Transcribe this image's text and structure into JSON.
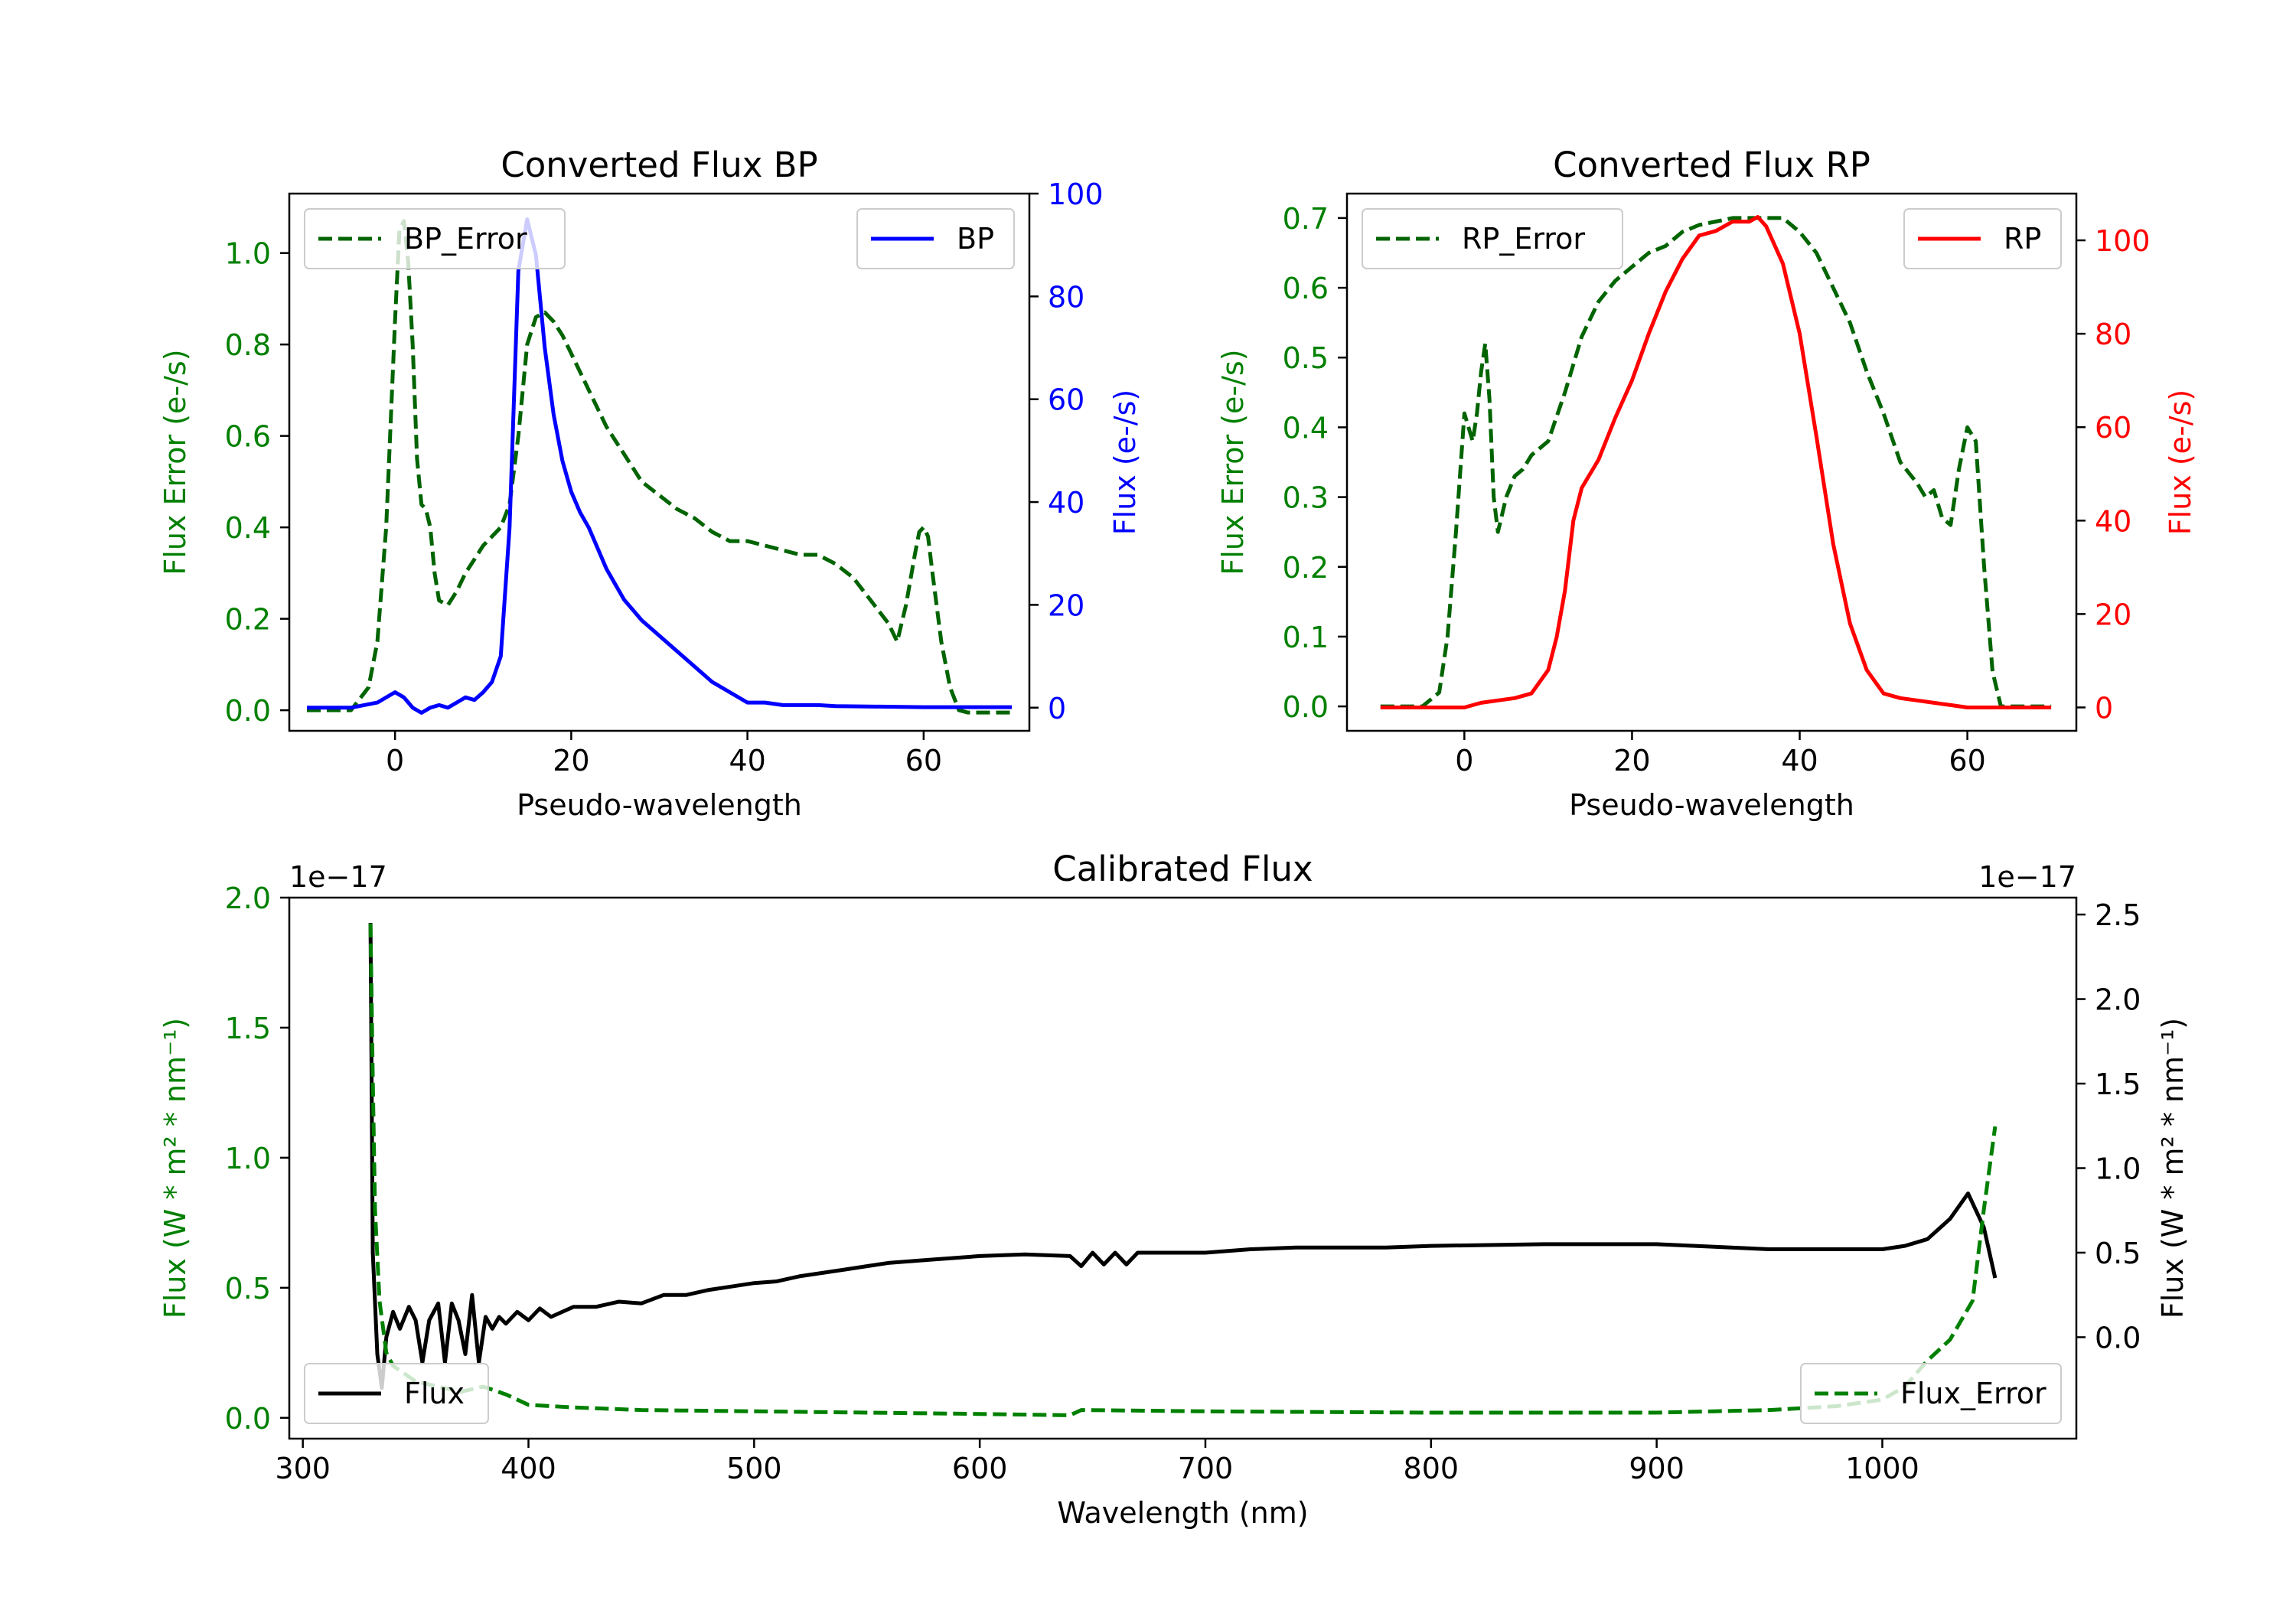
{
  "colors": {
    "green": "#008000",
    "darkgreen": "#006400",
    "blue": "#0000ff",
    "red": "#ff0000",
    "black": "#000000"
  },
  "chart_data": [
    {
      "id": "bp",
      "type": "line",
      "title": "Converted Flux BP",
      "xlabel": "Pseudo-wavelength",
      "ylabel_left": "Flux Error (e-/s)",
      "ylabel_right": "Flux (e-/s)",
      "xlim": [
        -12,
        72
      ],
      "ylim_left": [
        -0.045,
        1.13
      ],
      "ylim_right": [
        -4.5,
        100
      ],
      "xticks": [
        0,
        20,
        40,
        60
      ],
      "yticks_left": [
        0.0,
        0.2,
        0.4,
        0.6,
        0.8,
        1.0
      ],
      "yticks_right": [
        0,
        20,
        40,
        60,
        80,
        100
      ],
      "legend_left": "BP_Error",
      "legend_right": "BP",
      "series": [
        {
          "name": "BP_Error",
          "axis": "left",
          "style": "dashed",
          "color": "#006400",
          "x": [
            -10,
            -5,
            -3,
            -2,
            -1,
            0,
            0.5,
            1,
            1.5,
            2,
            2.5,
            3,
            3.5,
            4,
            4.5,
            5,
            6,
            7,
            8,
            9,
            10,
            11,
            12,
            13,
            14,
            15,
            16,
            17,
            18,
            19,
            20,
            22,
            24,
            26,
            28,
            30,
            32,
            34,
            36,
            38,
            40,
            42,
            44,
            46,
            48,
            50,
            52,
            54,
            56,
            57,
            58,
            59,
            59.5,
            60,
            60.5,
            61,
            62,
            63,
            64,
            65,
            70
          ],
          "values": [
            0.0,
            0.0,
            0.05,
            0.15,
            0.4,
            0.85,
            1.05,
            1.07,
            0.98,
            0.8,
            0.55,
            0.45,
            0.44,
            0.4,
            0.3,
            0.24,
            0.23,
            0.26,
            0.3,
            0.33,
            0.36,
            0.38,
            0.4,
            0.45,
            0.6,
            0.8,
            0.86,
            0.87,
            0.85,
            0.82,
            0.78,
            0.7,
            0.62,
            0.56,
            0.5,
            0.47,
            0.44,
            0.42,
            0.39,
            0.37,
            0.37,
            0.36,
            0.35,
            0.34,
            0.34,
            0.32,
            0.29,
            0.24,
            0.19,
            0.15,
            0.23,
            0.34,
            0.39,
            0.4,
            0.38,
            0.3,
            0.15,
            0.05,
            0.0,
            -0.005,
            -0.005
          ]
        },
        {
          "name": "BP",
          "axis": "right",
          "style": "solid",
          "color": "#0000ff",
          "x": [
            -10,
            -5,
            -2,
            0,
            1,
            2,
            3,
            4,
            5,
            6,
            7,
            8,
            9,
            10,
            11,
            12,
            13,
            14,
            15,
            16,
            17,
            18,
            19,
            20,
            21,
            22,
            23,
            24,
            25,
            26,
            27,
            28,
            30,
            32,
            34,
            36,
            38,
            40,
            42,
            44,
            46,
            48,
            50,
            55,
            60,
            65,
            70
          ],
          "values": [
            0,
            0,
            1,
            3,
            2,
            0,
            -1,
            0,
            0.5,
            0,
            1,
            2,
            1.5,
            3,
            5,
            10,
            35,
            85,
            95,
            88,
            70,
            57,
            48,
            42,
            38,
            35,
            31,
            27,
            24,
            21,
            19,
            17,
            14,
            11,
            8,
            5,
            3,
            1,
            1,
            0.5,
            0.5,
            0.5,
            0.3,
            0.2,
            0.1,
            0.1,
            0.1
          ]
        }
      ]
    },
    {
      "id": "rp",
      "type": "line",
      "title": "Converted Flux RP",
      "xlabel": "Pseudo-wavelength",
      "ylabel_left": "Flux Error (e-/s)",
      "ylabel_right": "Flux (e-/s)",
      "xlim": [
        -14,
        73
      ],
      "ylim_left": [
        -0.035,
        0.735
      ],
      "ylim_right": [
        -5,
        110
      ],
      "xticks": [
        0,
        20,
        40,
        60
      ],
      "yticks_left": [
        0.0,
        0.1,
        0.2,
        0.3,
        0.4,
        0.5,
        0.6,
        0.7
      ],
      "yticks_right": [
        0,
        20,
        40,
        60,
        80,
        100
      ],
      "legend_left": "RP_Error",
      "legend_right": "RP",
      "series": [
        {
          "name": "RP_Error",
          "axis": "left",
          "style": "dashed",
          "color": "#006400",
          "x": [
            -10,
            -5,
            -3,
            -2,
            -1,
            0,
            0.5,
            1,
            1.5,
            2,
            2.5,
            3,
            3.5,
            4,
            5,
            6,
            7,
            8,
            9,
            10,
            12,
            14,
            16,
            18,
            20,
            22,
            24,
            26,
            28,
            30,
            32,
            34,
            36,
            38,
            40,
            42,
            44,
            46,
            48,
            50,
            52,
            54,
            55,
            56,
            57,
            58,
            59,
            60,
            61,
            62,
            63,
            64,
            70
          ],
          "values": [
            0.0,
            0.0,
            0.02,
            0.1,
            0.25,
            0.42,
            0.4,
            0.38,
            0.42,
            0.48,
            0.52,
            0.44,
            0.3,
            0.25,
            0.3,
            0.33,
            0.34,
            0.36,
            0.37,
            0.38,
            0.45,
            0.53,
            0.58,
            0.61,
            0.63,
            0.65,
            0.66,
            0.68,
            0.69,
            0.695,
            0.7,
            0.7,
            0.7,
            0.7,
            0.68,
            0.65,
            0.6,
            0.55,
            0.48,
            0.42,
            0.35,
            0.32,
            0.3,
            0.31,
            0.27,
            0.26,
            0.34,
            0.4,
            0.38,
            0.2,
            0.05,
            0.0,
            0.0
          ]
        },
        {
          "name": "RP",
          "axis": "right",
          "style": "solid",
          "color": "#ff0000",
          "x": [
            -10,
            -5,
            0,
            2,
            4,
            6,
            8,
            10,
            11,
            12,
            13,
            14,
            16,
            18,
            20,
            22,
            24,
            26,
            28,
            30,
            32,
            34,
            35,
            36,
            38,
            40,
            42,
            44,
            46,
            48,
            50,
            52,
            54,
            56,
            58,
            60,
            65,
            70
          ],
          "values": [
            0,
            0,
            0,
            1,
            1.5,
            2,
            3,
            8,
            15,
            25,
            40,
            47,
            53,
            62,
            70,
            80,
            89,
            96,
            101,
            102,
            104,
            104,
            105,
            103,
            95,
            80,
            58,
            35,
            18,
            8,
            3,
            2,
            1.5,
            1,
            0.5,
            0,
            0,
            0
          ]
        }
      ]
    },
    {
      "id": "calibrated",
      "type": "line",
      "title": "Calibrated Flux",
      "xlabel": "Wavelength (nm)",
      "ylabel_left": "Flux (W * m² * nm⁻¹)",
      "ylabel_right": "Flux (W * m² * nm⁻¹)",
      "offset_left": "1e−17",
      "offset_right": "1e−17",
      "xlim": [
        294,
        1086
      ],
      "ylim_left": [
        -0.08,
        2.0
      ],
      "ylim_right": [
        -0.6,
        2.6
      ],
      "xticks": [
        300,
        400,
        500,
        600,
        700,
        800,
        900,
        1000
      ],
      "yticks_left": [
        0.0,
        0.5,
        1.0,
        1.5,
        2.0
      ],
      "yticks_right": [
        0.0,
        0.5,
        1.0,
        1.5,
        2.0,
        2.5
      ],
      "legend_left": "Flux",
      "legend_right": "Flux_Error",
      "series": [
        {
          "name": "Flux",
          "axis": "right",
          "style": "solid",
          "color": "#000000",
          "x": [
            330,
            331,
            333,
            335,
            337,
            340,
            343,
            347,
            350,
            353,
            356,
            360,
            363,
            366,
            369,
            372,
            375,
            378,
            381,
            384,
            387,
            390,
            395,
            400,
            405,
            410,
            420,
            430,
            440,
            450,
            460,
            470,
            480,
            490,
            500,
            510,
            520,
            530,
            540,
            550,
            560,
            570,
            580,
            590,
            600,
            620,
            640,
            645,
            650,
            655,
            660,
            665,
            670,
            680,
            700,
            720,
            740,
            760,
            780,
            800,
            850,
            900,
            950,
            980,
            1000,
            1010,
            1020,
            1030,
            1038,
            1045,
            1050
          ],
          "values": [
            2.45,
            0.5,
            -0.1,
            -0.3,
            0.0,
            0.15,
            0.05,
            0.18,
            0.1,
            -0.15,
            0.1,
            0.2,
            -0.15,
            0.2,
            0.1,
            -0.1,
            0.25,
            -0.15,
            0.12,
            0.05,
            0.12,
            0.08,
            0.15,
            0.1,
            0.17,
            0.12,
            0.18,
            0.18,
            0.21,
            0.2,
            0.25,
            0.25,
            0.28,
            0.3,
            0.32,
            0.33,
            0.36,
            0.38,
            0.4,
            0.42,
            0.44,
            0.45,
            0.46,
            0.47,
            0.48,
            0.49,
            0.48,
            0.42,
            0.5,
            0.43,
            0.5,
            0.43,
            0.5,
            0.5,
            0.5,
            0.52,
            0.53,
            0.53,
            0.53,
            0.54,
            0.55,
            0.55,
            0.52,
            0.52,
            0.52,
            0.54,
            0.58,
            0.7,
            0.85,
            0.65,
            0.35
          ]
        },
        {
          "name": "Flux_Error",
          "axis": "left",
          "style": "dashed",
          "color": "#008000",
          "x": [
            330,
            331,
            332,
            334,
            337,
            340,
            345,
            350,
            360,
            370,
            380,
            390,
            400,
            420,
            450,
            500,
            550,
            600,
            640,
            645,
            700,
            800,
            900,
            950,
            980,
            1000,
            1010,
            1020,
            1030,
            1040,
            1045,
            1050
          ],
          "values": [
            1.9,
            1.3,
            0.8,
            0.45,
            0.25,
            0.2,
            0.17,
            0.14,
            0.12,
            0.1,
            0.12,
            0.09,
            0.05,
            0.04,
            0.03,
            0.025,
            0.02,
            0.015,
            0.01,
            0.03,
            0.025,
            0.02,
            0.02,
            0.03,
            0.045,
            0.07,
            0.12,
            0.22,
            0.3,
            0.45,
            0.8,
            1.12
          ]
        }
      ]
    }
  ]
}
